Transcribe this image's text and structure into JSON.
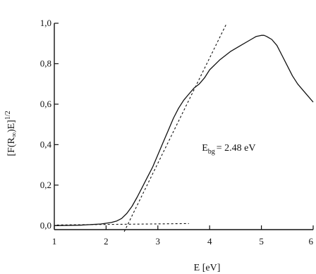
{
  "chart_data": {
    "type": "line",
    "title": "",
    "xlabel": "E [eV]",
    "ylabel": "[F(R∞)E]^1/2",
    "ylabel_parts": {
      "main": "[F(R",
      "sub": "∞",
      "close": ")E]",
      "sup": "1/2"
    },
    "xlim": [
      1,
      6
    ],
    "ylim": [
      -0.02,
      1.0
    ],
    "x_ticks": [
      1,
      2,
      3,
      4,
      5,
      6
    ],
    "x_tick_labels": [
      "1",
      "2",
      "3",
      "4",
      "5",
      "6"
    ],
    "y_ticks": [
      0.0,
      0.2,
      0.4,
      0.6,
      0.8,
      1.0
    ],
    "y_tick_labels": [
      "0,0",
      "0,2",
      "0,4",
      "0,6",
      "0,8",
      "1,0"
    ],
    "grid": false,
    "series": [
      {
        "style": "solid",
        "x": [
          1.0,
          1.5,
          1.9,
          2.1,
          2.2,
          2.3,
          2.4,
          2.5,
          2.6,
          2.7,
          2.8,
          2.9,
          3.0,
          3.1,
          3.2,
          3.3,
          3.4,
          3.5,
          3.6,
          3.7,
          3.8,
          3.9,
          4.0,
          4.2,
          4.4,
          4.6,
          4.8,
          4.9,
          5.0,
          5.05,
          5.1,
          5.2,
          5.3,
          5.4,
          5.5,
          5.6,
          5.7,
          5.8,
          5.9,
          6.0
        ],
        "y": [
          0.0,
          0.002,
          0.008,
          0.015,
          0.022,
          0.035,
          0.06,
          0.095,
          0.14,
          0.19,
          0.24,
          0.29,
          0.35,
          0.41,
          0.47,
          0.53,
          0.58,
          0.62,
          0.65,
          0.68,
          0.7,
          0.73,
          0.77,
          0.82,
          0.86,
          0.89,
          0.92,
          0.935,
          0.94,
          0.94,
          0.935,
          0.92,
          0.89,
          0.84,
          0.79,
          0.74,
          0.7,
          0.67,
          0.64,
          0.61
        ]
      },
      {
        "style": "dashed",
        "x": [
          2.35,
          4.33
        ],
        "y": [
          -0.03,
          1.0
        ]
      },
      {
        "style": "dashed",
        "x": [
          1.05,
          3.6
        ],
        "y": [
          0.003,
          0.01
        ]
      }
    ],
    "annotations": [
      {
        "text_main": "E",
        "text_sub": "bg",
        "text_rest": "= 2.48 eV",
        "x": 3.85,
        "y": 0.37
      }
    ]
  }
}
